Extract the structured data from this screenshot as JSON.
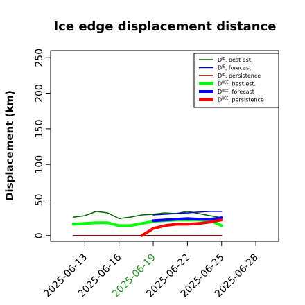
{
  "chart_data": {
    "type": "line",
    "title": "Ice edge displacement distance",
    "xlabel": "",
    "ylabel": "Displacement (km)",
    "x_ticks": [
      "2025-06-13",
      "2025-06-16",
      "2025-06-19",
      "2025-06-22",
      "2025-06-25",
      "2025-06-28"
    ],
    "highlight_tick": "2025-06-19",
    "highlight_color": "#228b22",
    "xlim": [
      "2025-06-10",
      "2025-06-30"
    ],
    "ylim": [
      -8,
      260
    ],
    "y_ticks": [
      0,
      50,
      100,
      150,
      200,
      250
    ],
    "grid": false,
    "legend_position": "top-right",
    "legend": [
      {
        "base": "D",
        "sup": "IE",
        "suffix": ", best est."
      },
      {
        "base": "D",
        "sup": "IE",
        "suffix": ", forecast"
      },
      {
        "base": "D",
        "sup": "IE",
        "suffix": ", persistence"
      },
      {
        "base": "D",
        "sup": "IIEE",
        "suffix": ", best est."
      },
      {
        "base": "D",
        "sup": "IIEE",
        "suffix": ", forecast"
      },
      {
        "base": "D",
        "sup": "IIEE",
        "suffix": ", persistence"
      }
    ],
    "series": [
      {
        "color": "#006400",
        "width": 1.5,
        "x": [
          "2025-06-12",
          "2025-06-13",
          "2025-06-14",
          "2025-06-15",
          "2025-06-16",
          "2025-06-17",
          "2025-06-18",
          "2025-06-19",
          "2025-06-20",
          "2025-06-21",
          "2025-06-22",
          "2025-06-23",
          "2025-06-24",
          "2025-06-25"
        ],
        "y": [
          26,
          28,
          34,
          32,
          24,
          26,
          29,
          30,
          32,
          31,
          34,
          31,
          28,
          25
        ]
      },
      {
        "color": "#0000cd",
        "width": 1.5,
        "x": [
          "2025-06-19",
          "2025-06-20",
          "2025-06-21",
          "2025-06-22",
          "2025-06-23",
          "2025-06-24",
          "2025-06-25"
        ],
        "y": [
          29,
          30,
          31,
          32,
          33,
          34,
          34
        ]
      },
      {
        "color": "#8b0000",
        "width": 1.5,
        "x": [
          "2025-06-12",
          "2025-06-25"
        ],
        "y": [
          0,
          0
        ]
      },
      {
        "color": "#00ff00",
        "width": 4,
        "x": [
          "2025-06-12",
          "2025-06-13",
          "2025-06-14",
          "2025-06-15",
          "2025-06-16",
          "2025-06-17",
          "2025-06-18",
          "2025-06-19",
          "2025-06-20",
          "2025-06-21",
          "2025-06-22",
          "2025-06-23",
          "2025-06-24",
          "2025-06-25"
        ],
        "y": [
          16,
          17,
          18,
          18,
          14,
          14,
          17,
          20,
          21,
          22,
          22,
          22,
          21,
          14
        ]
      },
      {
        "color": "#0000ff",
        "width": 4,
        "x": [
          "2025-06-19",
          "2025-06-20",
          "2025-06-21",
          "2025-06-22",
          "2025-06-23",
          "2025-06-24",
          "2025-06-25"
        ],
        "y": [
          21,
          22,
          23,
          24,
          23,
          23,
          25
        ]
      },
      {
        "color": "#ff0000",
        "width": 4,
        "x": [
          "2025-06-18",
          "2025-06-19",
          "2025-06-20",
          "2025-06-21",
          "2025-06-22",
          "2025-06-23",
          "2025-06-24",
          "2025-06-25"
        ],
        "y": [
          0,
          10,
          14,
          16,
          16,
          17,
          19,
          22
        ]
      }
    ]
  }
}
